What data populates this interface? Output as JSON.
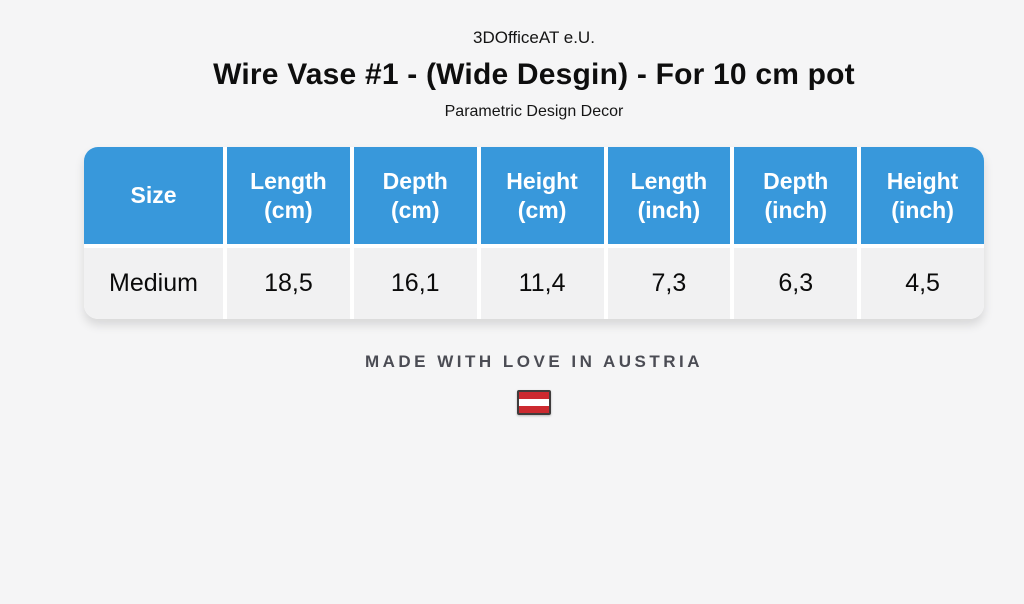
{
  "page": {
    "brand": "3DOfficeAT e.U.",
    "title": "Wire Vase #1 - (Wide Desgin) - For 10 cm pot",
    "subtitle": "Parametric Design Decor"
  },
  "spec_table": {
    "columns": [
      {
        "label": "Size"
      },
      {
        "label": "Length (cm)"
      },
      {
        "label": "Depth (cm)"
      },
      {
        "label": "Height (cm)"
      },
      {
        "label": "Length (inch)"
      },
      {
        "label": "Depth (inch)"
      },
      {
        "label": "Height (inch)"
      }
    ],
    "rows": [
      {
        "cells": [
          "Medium",
          "18,5",
          "16,1",
          "11,4",
          "7,3",
          "6,3",
          "4,5"
        ]
      }
    ]
  },
  "footer": {
    "tagline": "MADE WITH LOVE IN AUSTRIA",
    "flag_icon": "austria-flag"
  },
  "colors": {
    "page_bg": "#f5f5f6",
    "header_blue": "#3898db",
    "row_bg": "#f1f1f2",
    "tagline_gray": "#4b4c54",
    "flag_red": "#cc2a30",
    "flag_border": "#3f3c3c"
  }
}
